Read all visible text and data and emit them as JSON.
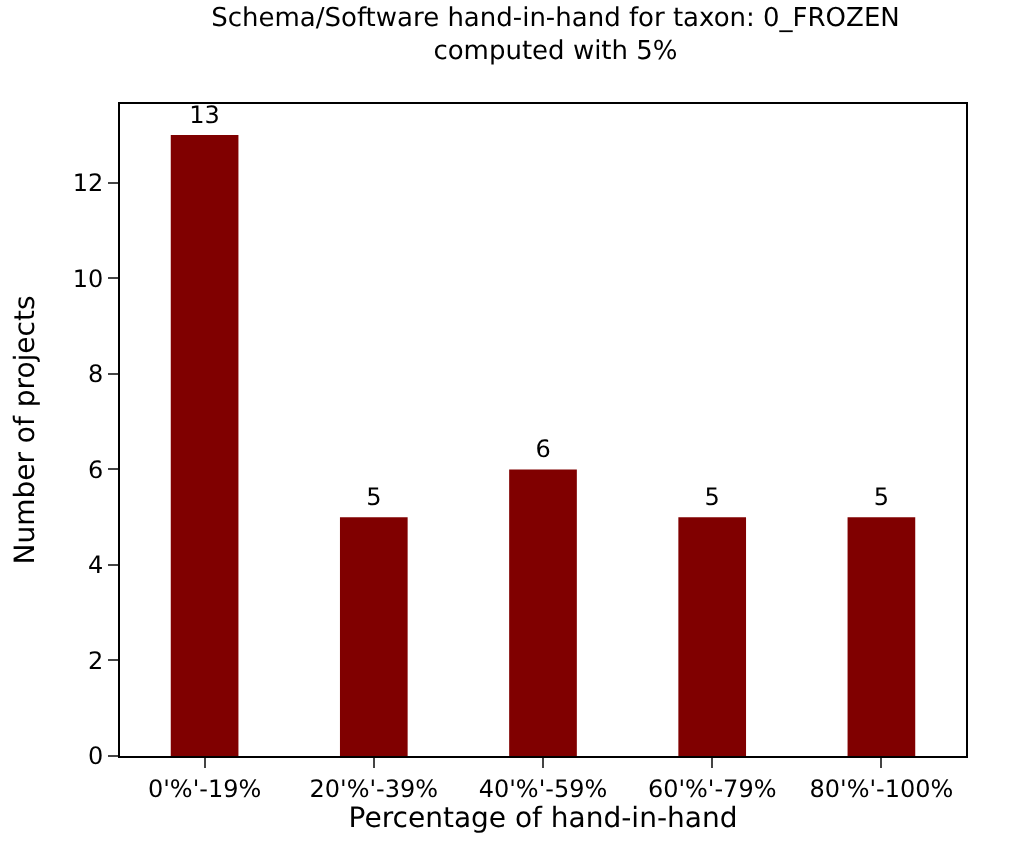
{
  "chart_data": {
    "type": "bar",
    "title": "Schema/Software hand-in-hand for taxon: 0_FROZEN",
    "subtitle": "computed with 5%",
    "xlabel": "Percentage of hand-in-hand",
    "ylabel": "Number of projects",
    "categories": [
      "0'%'-19%",
      "20'%'-39%",
      "40'%'-59%",
      "60'%'-79%",
      "80'%'-100%"
    ],
    "values": [
      13,
      5,
      6,
      5,
      5
    ],
    "color": "#800000",
    "ylim": [
      0,
      13.65
    ],
    "yticks": [
      0,
      2,
      4,
      6,
      8,
      10,
      12
    ],
    "data_labels": true,
    "legend": false
  }
}
